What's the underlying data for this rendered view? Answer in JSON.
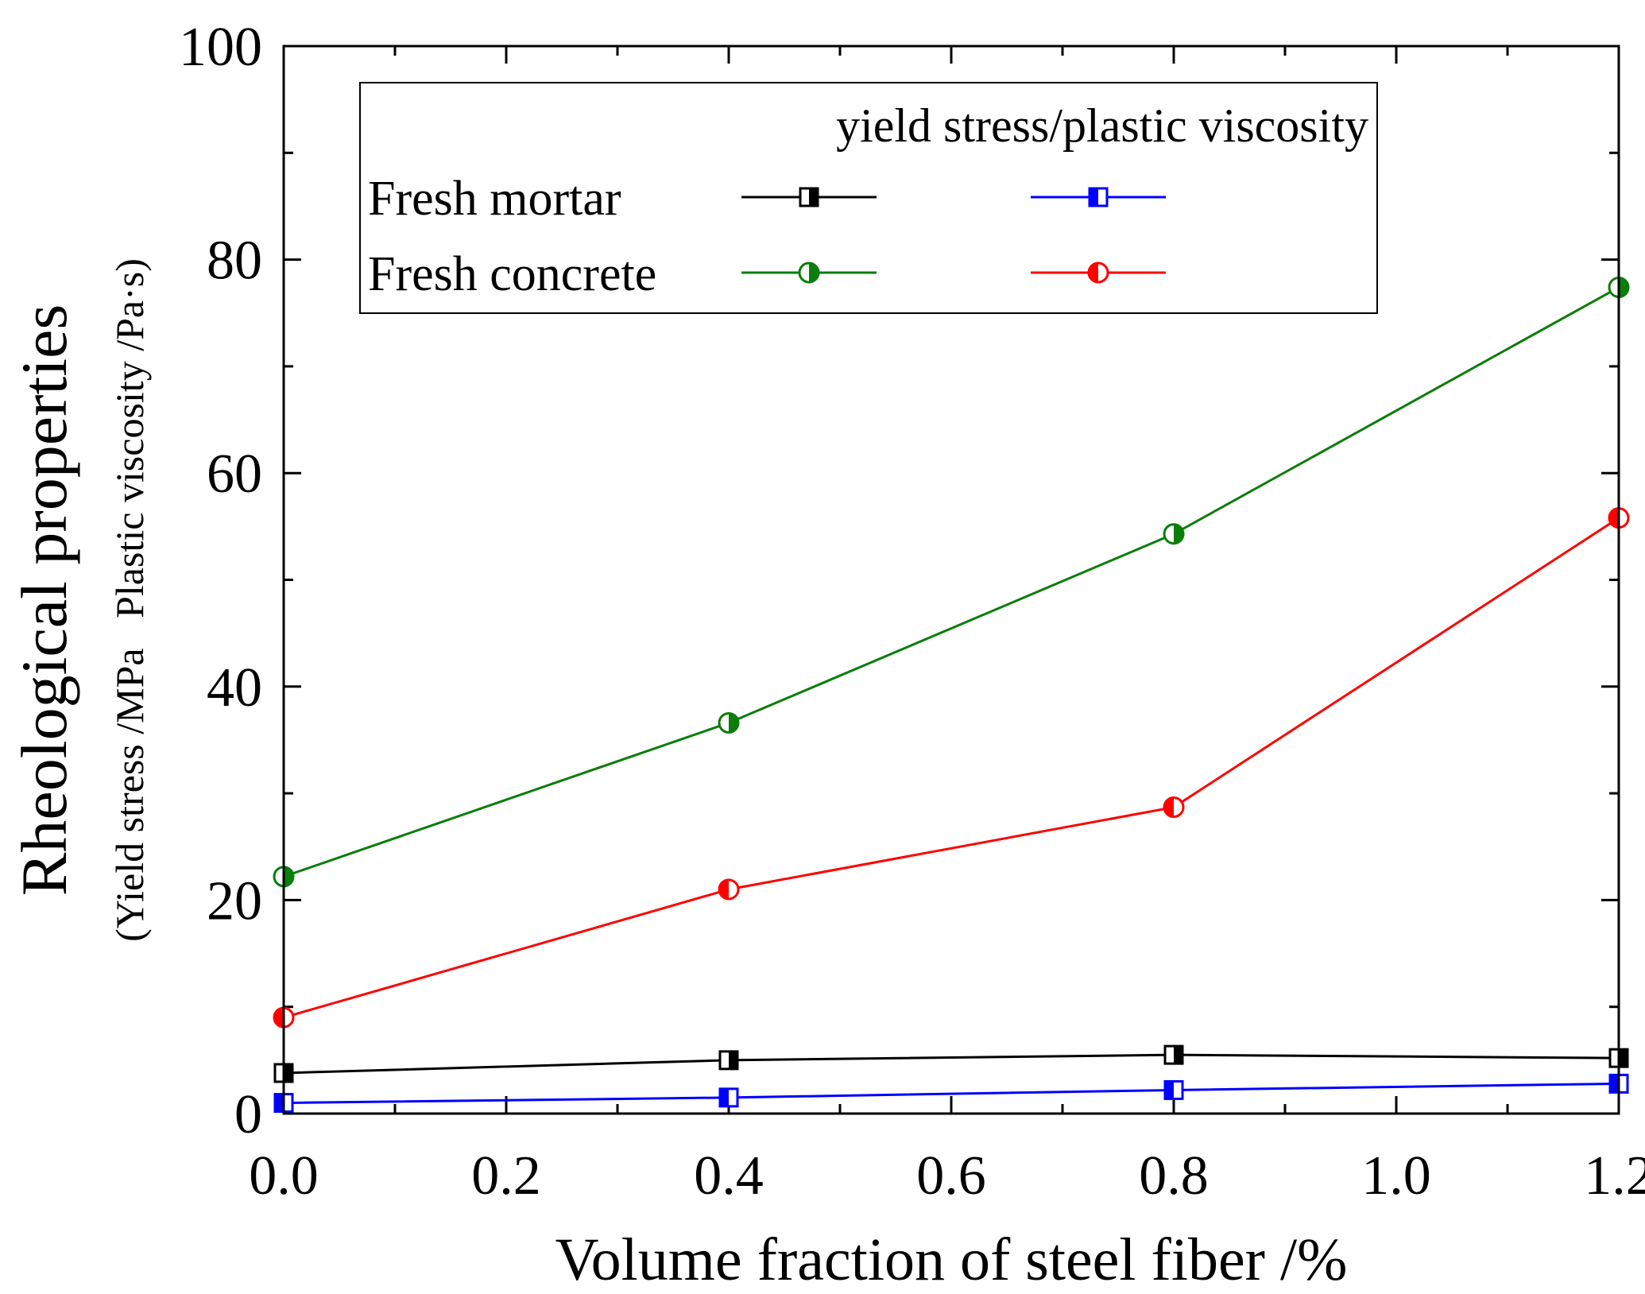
{
  "chart_data": {
    "type": "line",
    "xlabel": "Volume fraction of steel fiber /%",
    "ylabel_main": "Rheological properties",
    "ylabel_sub": "(Yield stress /MPa   Plastic viscosity /Pa·s)",
    "xlim": [
      0,
      1.2
    ],
    "ylim": [
      0,
      100
    ],
    "x_ticks": [
      0,
      0.2,
      0.4,
      0.6,
      0.8,
      1.0,
      1.2
    ],
    "x_tick_labels": [
      "0.0",
      "0.2",
      "0.4",
      "0.6",
      "0.8",
      "1.0",
      "1.2"
    ],
    "y_ticks": [
      0,
      20,
      40,
      60,
      80,
      100
    ],
    "y_tick_labels": [
      "0",
      "20",
      "40",
      "60",
      "80",
      "100"
    ],
    "x": [
      0,
      0.4,
      0.8,
      1.2
    ],
    "legend": {
      "header": "yield stress/plastic viscosity",
      "rows": [
        "Fresh mortar",
        "Fresh concrete"
      ],
      "placement": "top-left"
    },
    "series": [
      {
        "row": "Fresh mortar",
        "quantity": "yield stress",
        "color": "#000000",
        "marker": "square-half-right",
        "values": [
          3.8,
          5.0,
          5.5,
          5.2
        ]
      },
      {
        "row": "Fresh mortar",
        "quantity": "plastic viscosity",
        "color": "#0000ff",
        "marker": "square-half-left",
        "values": [
          1.0,
          1.5,
          2.2,
          2.8
        ]
      },
      {
        "row": "Fresh concrete",
        "quantity": "yield stress",
        "color": "#0a7d0a",
        "marker": "circle-half-right",
        "values": [
          22.2,
          36.6,
          54.3,
          77.4
        ]
      },
      {
        "row": "Fresh concrete",
        "quantity": "plastic viscosity",
        "color": "#ff0000",
        "marker": "circle-half-left",
        "values": [
          9.0,
          21.0,
          28.7,
          55.8
        ]
      }
    ],
    "grid": false
  }
}
